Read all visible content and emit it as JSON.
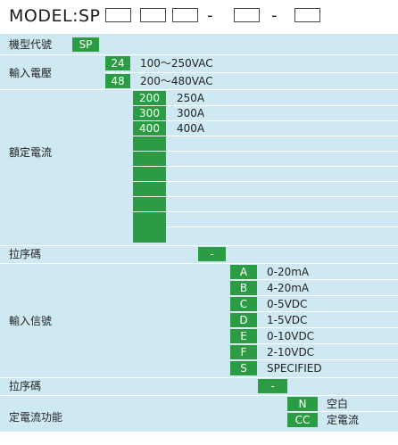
{
  "header": {
    "model_prefix": "MODEL:SP",
    "dash_1": "-",
    "dash_2": "-"
  },
  "colors": {
    "band": "#cfe9f2",
    "green": "#2b9c43"
  },
  "rows": {
    "model_code": {
      "label": "機型代號",
      "code": "SP"
    },
    "input_voltage": {
      "label": "輸入電壓",
      "options": [
        {
          "code": "24",
          "value": "100～250VAC"
        },
        {
          "code": "48",
          "value": "200～480VAC"
        }
      ]
    },
    "rated_current": {
      "label": "額定電流",
      "options": [
        {
          "code": "200",
          "value": "250A"
        },
        {
          "code": "300",
          "value": "300A"
        },
        {
          "code": "400",
          "value": "400A"
        }
      ],
      "empty_slots": 6
    },
    "separator_1": {
      "label": "拉序碼",
      "code": "-"
    },
    "input_signal": {
      "label": "輸入信號",
      "options": [
        {
          "code": "A",
          "value": "0-20mA"
        },
        {
          "code": "B",
          "value": "4-20mA"
        },
        {
          "code": "C",
          "value": "0-5VDC"
        },
        {
          "code": "D",
          "value": "1-5VDC"
        },
        {
          "code": "E",
          "value": "0-10VDC"
        },
        {
          "code": "F",
          "value": "2-10VDC"
        },
        {
          "code": "S",
          "value": "SPECIFIED"
        }
      ]
    },
    "separator_2": {
      "label": "拉序碼",
      "code": "-"
    },
    "constant_current": {
      "label": "定電流功能",
      "options": [
        {
          "code": "N",
          "value": "空白"
        },
        {
          "code": "CC",
          "value": "定電流"
        }
      ]
    }
  }
}
